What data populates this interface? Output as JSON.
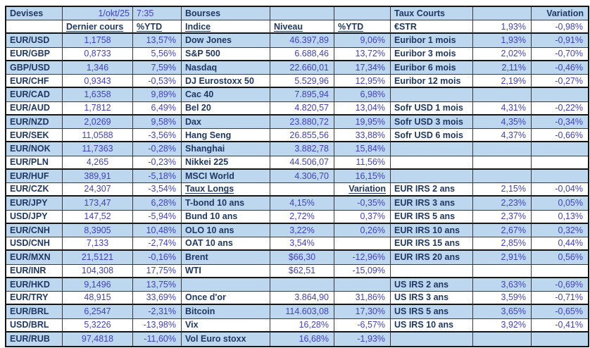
{
  "colors": {
    "row_shaded": "#BDD7EE",
    "label_text": "#1F3864",
    "value_text": "#4141C8",
    "grid_line": "#3a3a3a",
    "grid_line_heavy": "#151515",
    "spellcheck_underline": "#d42a2a"
  },
  "header_date": {
    "parts": [
      "1/",
      "okt",
      "/25"
    ],
    "full": "1/okt/25",
    "time": "7:35"
  },
  "grid": {
    "rows": [
      [
        [
          "Devises",
          "h"
        ],
        [
          "",
          "dt"
        ],
        [
          "7:35",
          "lv"
        ],
        [
          "Bourses",
          "h"
        ],
        [
          "",
          ""
        ],
        [
          "",
          ""
        ],
        [
          "Taux Courts",
          "h"
        ],
        [
          "",
          ""
        ],
        [
          "Variation",
          "hr"
        ]
      ],
      [
        [
          "",
          ""
        ],
        [
          "Dernier cours",
          "hu"
        ],
        [
          "%YTD",
          "hu"
        ],
        [
          "Indice",
          "hu"
        ],
        [
          "Niveau",
          "hu"
        ],
        [
          "%YTD",
          "hu"
        ],
        [
          "€STR",
          "l"
        ],
        [
          "1,93%",
          "r"
        ],
        [
          "-0,98%",
          "r"
        ]
      ],
      [
        [
          "EUR/USD",
          "l"
        ],
        [
          "1,1758",
          "c"
        ],
        [
          "13,57%",
          "r"
        ],
        [
          "Dow Jones",
          "l"
        ],
        [
          "46.397,89",
          "r"
        ],
        [
          "9,06%",
          "r"
        ],
        [
          "Euribor 1 mois",
          "l"
        ],
        [
          "1,93%",
          "r"
        ],
        [
          "-0,91%",
          "r"
        ]
      ],
      [
        [
          "EUR/GBP",
          "l"
        ],
        [
          "0,8733",
          "c"
        ],
        [
          "5,56%",
          "r"
        ],
        [
          "S&P 500",
          "l"
        ],
        [
          "6.688,46",
          "r"
        ],
        [
          "13,72%",
          "r"
        ],
        [
          "Euribor 3 mois",
          "l"
        ],
        [
          "2,02%",
          "r"
        ],
        [
          "-0,70%",
          "r"
        ]
      ],
      [
        [
          "GBP/USD",
          "l"
        ],
        [
          "1,346",
          "c"
        ],
        [
          "7,59%",
          "r"
        ],
        [
          "Nasdaq",
          "l"
        ],
        [
          "22.660,01",
          "r"
        ],
        [
          "17,34%",
          "r"
        ],
        [
          "Euribor 6 mois",
          "l"
        ],
        [
          "2,11%",
          "r"
        ],
        [
          "-0,46%",
          "r"
        ]
      ],
      [
        [
          "EUR/CHF",
          "l"
        ],
        [
          "0,9343",
          "c"
        ],
        [
          "-0,53%",
          "r"
        ],
        [
          "DJ Eurostoxx 50",
          "l"
        ],
        [
          "5.529,96",
          "r"
        ],
        [
          "12,95%",
          "r"
        ],
        [
          "Euribor 12 mois",
          "l"
        ],
        [
          "2,19%",
          "r"
        ],
        [
          "-0,27%",
          "r"
        ]
      ],
      [
        [
          "EUR/CAD",
          "l"
        ],
        [
          "1,6358",
          "c"
        ],
        [
          "9,89%",
          "r"
        ],
        [
          "Cac 40",
          "l"
        ],
        [
          "7.895,94",
          "r"
        ],
        [
          "6,98%",
          "r"
        ],
        [
          "",
          ""
        ],
        [
          "",
          ""
        ],
        [
          "",
          ""
        ]
      ],
      [
        [
          "EUR/AUD",
          "l"
        ],
        [
          "1,7812",
          "c"
        ],
        [
          "6,49%",
          "r"
        ],
        [
          "Bel 20",
          "l"
        ],
        [
          "4.820,57",
          "r"
        ],
        [
          "13,04%",
          "r"
        ],
        [
          "Sofr USD 1 mois",
          "l"
        ],
        [
          "4,31%",
          "r"
        ],
        [
          "-0,22%",
          "r"
        ]
      ],
      [
        [
          "EUR/NZD",
          "l"
        ],
        [
          "2,0269",
          "c"
        ],
        [
          "9,58%",
          "r"
        ],
        [
          "Dax",
          "l"
        ],
        [
          "23.880,72",
          "r"
        ],
        [
          "19,95%",
          "r"
        ],
        [
          "Sofr USD 3 mois",
          "l"
        ],
        [
          "4,35%",
          "r"
        ],
        [
          "-0,34%",
          "r"
        ]
      ],
      [
        [
          "EUR/SEK",
          "l"
        ],
        [
          "11,0588",
          "c"
        ],
        [
          "-3,56%",
          "r"
        ],
        [
          "Hang Seng",
          "l"
        ],
        [
          "26.855,56",
          "r"
        ],
        [
          "33,88%",
          "r"
        ],
        [
          "Sofr USD 6 mois",
          "l"
        ],
        [
          "4,37%",
          "r"
        ],
        [
          "-0,66%",
          "r"
        ]
      ],
      [
        [
          "EUR/NOK",
          "l"
        ],
        [
          "11,7363",
          "c"
        ],
        [
          "-0,28%",
          "r"
        ],
        [
          "Shanghai",
          "l"
        ],
        [
          "3.882,78",
          "r"
        ],
        [
          "15,84%",
          "r"
        ],
        [
          "",
          ""
        ],
        [
          "",
          ""
        ],
        [
          "",
          ""
        ]
      ],
      [
        [
          "EUR/PLN",
          "l"
        ],
        [
          "4,265",
          "c"
        ],
        [
          "-0,23%",
          "r"
        ],
        [
          "Nikkei 225",
          "l"
        ],
        [
          "44.506,07",
          "r"
        ],
        [
          "11,56%",
          "r"
        ],
        [
          "",
          ""
        ],
        [
          "",
          ""
        ],
        [
          "",
          ""
        ]
      ],
      [
        [
          "EUR/HUF",
          "l"
        ],
        [
          "389,91",
          "c"
        ],
        [
          "-5,18%",
          "r"
        ],
        [
          "MSCI World",
          "l"
        ],
        [
          "4.306,70",
          "r"
        ],
        [
          "16,15%",
          "r"
        ],
        [
          "",
          ""
        ],
        [
          "",
          ""
        ],
        [
          "",
          ""
        ]
      ],
      [
        [
          "EUR/CZK",
          "l"
        ],
        [
          "24,307",
          "c"
        ],
        [
          "-3,54%",
          "r"
        ],
        [
          "Taux Longs",
          "hu"
        ],
        [
          "",
          ""
        ],
        [
          "Variation",
          "hur"
        ],
        [
          "EUR IRS 2 ans",
          "l"
        ],
        [
          "2,15%",
          "r"
        ],
        [
          "-0,04%",
          "r"
        ]
      ],
      [
        [
          "EUR/JPY",
          "l"
        ],
        [
          "173,47",
          "c"
        ],
        [
          "6,28%",
          "r"
        ],
        [
          "T-bond 10 ans",
          "l"
        ],
        [
          "4,15%",
          "c"
        ],
        [
          "-0,35%",
          "r"
        ],
        [
          "EUR IRS 3 ans",
          "l"
        ],
        [
          "2,23%",
          "r"
        ],
        [
          "0,05%",
          "r"
        ]
      ],
      [
        [
          "USD/JPY",
          "l"
        ],
        [
          "147,52",
          "c"
        ],
        [
          "-5,94%",
          "r"
        ],
        [
          "Bund 10 ans",
          "l"
        ],
        [
          "2,72%",
          "c"
        ],
        [
          "0,37%",
          "r"
        ],
        [
          "EUR IRS 5 ans",
          "l"
        ],
        [
          "2,37%",
          "r"
        ],
        [
          "0,13%",
          "r"
        ]
      ],
      [
        [
          "EUR/CNH",
          "l"
        ],
        [
          "8,3905",
          "c"
        ],
        [
          "10,48%",
          "r"
        ],
        [
          "OLO 10 ans",
          "l"
        ],
        [
          "3,22%",
          "c"
        ],
        [
          "0,26%",
          "r"
        ],
        [
          "EUR IRS 10 ans",
          "l"
        ],
        [
          "2,67%",
          "r"
        ],
        [
          "0,32%",
          "r"
        ]
      ],
      [
        [
          "USD/CNH",
          "l"
        ],
        [
          "7,133",
          "c"
        ],
        [
          "-2,74%",
          "r"
        ],
        [
          "OAT 10 ans",
          "l"
        ],
        [
          "3,54%",
          "c"
        ],
        [
          "",
          ""
        ],
        [
          "EUR IRS 15 ans",
          "l"
        ],
        [
          "2,85%",
          "r"
        ],
        [
          "0,44%",
          "r"
        ]
      ],
      [
        [
          "EUR/MXN",
          "l"
        ],
        [
          "21,5121",
          "c"
        ],
        [
          "-0,16%",
          "r"
        ],
        [
          "Brent",
          "l"
        ],
        [
          "$66,30",
          "c"
        ],
        [
          "-12,96%",
          "r"
        ],
        [
          "EUR IRS 20 ans",
          "l"
        ],
        [
          "2,91%",
          "r"
        ],
        [
          "0,56%",
          "r"
        ]
      ],
      [
        [
          "EUR/INR",
          "l"
        ],
        [
          "104,308",
          "c"
        ],
        [
          "17,75%",
          "r"
        ],
        [
          "WTI",
          "l"
        ],
        [
          "$62,51",
          "c"
        ],
        [
          "-15,09%",
          "r"
        ],
        [
          "",
          ""
        ],
        [
          "",
          ""
        ],
        [
          "",
          ""
        ]
      ],
      [
        [
          "EUR/HKD",
          "l"
        ],
        [
          "9,1496",
          "c"
        ],
        [
          "13,75%",
          "r"
        ],
        [
          "",
          ""
        ],
        [
          "",
          ""
        ],
        [
          "",
          ""
        ],
        [
          "US IRS 2 ans",
          "l"
        ],
        [
          "3,63%",
          "r"
        ],
        [
          "-0,69%",
          "r"
        ]
      ],
      [
        [
          "EUR/TRY",
          "l"
        ],
        [
          "48,915",
          "c"
        ],
        [
          "33,69%",
          "r"
        ],
        [
          "Once d'or",
          "l"
        ],
        [
          "3.864,90",
          "r"
        ],
        [
          "31,86%",
          "r"
        ],
        [
          "US IRS 3 ans",
          "l"
        ],
        [
          "3,59%",
          "r"
        ],
        [
          "-0,71%",
          "r"
        ]
      ],
      [
        [
          "EUR/BRL",
          "l"
        ],
        [
          "6,2547",
          "c"
        ],
        [
          "-2,31%",
          "r"
        ],
        [
          "Bitcoin",
          "l"
        ],
        [
          "114.603,08",
          "r"
        ],
        [
          "17,30%",
          "r"
        ],
        [
          "US IRS 5 ans",
          "l"
        ],
        [
          "3,65%",
          "r"
        ],
        [
          "-0,65%",
          "r"
        ]
      ],
      [
        [
          "USD/BRL",
          "l"
        ],
        [
          "5,3226",
          "c"
        ],
        [
          "-13,98%",
          "r"
        ],
        [
          "Vix",
          "l"
        ],
        [
          "16,28%",
          "r"
        ],
        [
          "-6,57%",
          "r"
        ],
        [
          "US IRS 10 ans",
          "l"
        ],
        [
          "3,92%",
          "r"
        ],
        [
          "-0,41%",
          "r"
        ]
      ],
      [
        [
          "EUR/RUB",
          "l"
        ],
        [
          "97,4818",
          "c"
        ],
        [
          "-11,60%",
          "r"
        ],
        [
          "Vol Euro stoxx",
          "l"
        ],
        [
          "16,68%",
          "r"
        ],
        [
          "-1,93%",
          "r"
        ],
        [
          "",
          ""
        ],
        [
          "",
          ""
        ],
        [
          "",
          ""
        ]
      ]
    ]
  }
}
